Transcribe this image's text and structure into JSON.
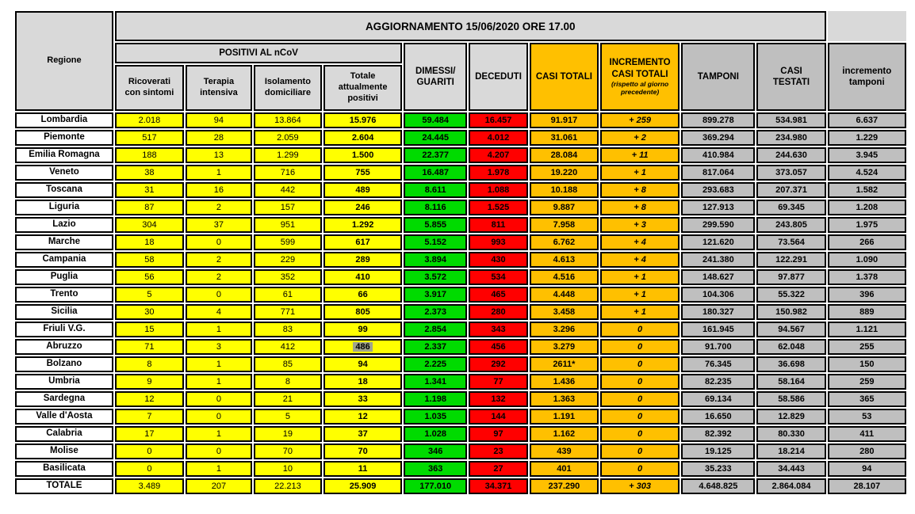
{
  "title": "AGGIORNAMENTO 15/06/2020 ORE 17.00",
  "columns": {
    "regione": "Regione",
    "positivi_group": "POSITIVI AL nCoV",
    "ricoverati": "Ricoverati\ncon sintomi",
    "terapia": "Terapia\nintensiva",
    "isolamento": "Isolamento\ndomiciliare",
    "totale_positivi": "Totale\nattualmente\npositivi",
    "dimessi": "DIMESSI/\nGUARITI",
    "deceduti": "DECEDUTI",
    "casi_totali": "CASI TOTALI",
    "incremento_main": "INCREMENTO\nCASI  TOTALI",
    "incremento_note": "(rispetto al giorno\nprecedente)",
    "tamponi": "TAMPONI",
    "casi_testati": "CASI\nTESTATI",
    "incremento_tamponi": "incremento\ntamponi"
  },
  "colors": {
    "yellow": "#FFFF00",
    "green": "#00DB00",
    "red": "#FF0000",
    "orange": "#FFC000",
    "gray_data": "#BFBFBF",
    "gray_header": "#D9D9D9",
    "border": "#000000",
    "highlight": "#A0A48C"
  },
  "rows": [
    {
      "region": "Lombardia",
      "ricoverati": "2.018",
      "terapia": "94",
      "isolamento": "13.864",
      "totale_positivi": "15.976",
      "dimessi": "59.484",
      "deceduti": "16.457",
      "casi_totali": "91.917",
      "incremento": "+ 259",
      "tamponi": "899.278",
      "casi_testati": "534.981",
      "incremento_tamponi": "6.637"
    },
    {
      "region": "Piemonte",
      "ricoverati": "517",
      "terapia": "28",
      "isolamento": "2.059",
      "totale_positivi": "2.604",
      "dimessi": "24.445",
      "deceduti": "4.012",
      "casi_totali": "31.061",
      "incremento": "+ 2",
      "tamponi": "369.294",
      "casi_testati": "234.980",
      "incremento_tamponi": "1.229"
    },
    {
      "region": "Emilia Romagna",
      "ricoverati": "188",
      "terapia": "13",
      "isolamento": "1.299",
      "totale_positivi": "1.500",
      "dimessi": "22.377",
      "deceduti": "4.207",
      "casi_totali": "28.084",
      "incremento": "+ 11",
      "tamponi": "410.984",
      "casi_testati": "244.630",
      "incremento_tamponi": "3.945"
    },
    {
      "region": "Veneto",
      "ricoverati": "38",
      "terapia": "1",
      "isolamento": "716",
      "totale_positivi": "755",
      "dimessi": "16.487",
      "deceduti": "1.978",
      "casi_totali": "19.220",
      "incremento": "+ 1",
      "tamponi": "817.064",
      "casi_testati": "373.057",
      "incremento_tamponi": "4.524"
    },
    {
      "region": "Toscana",
      "ricoverati": "31",
      "terapia": "16",
      "isolamento": "442",
      "totale_positivi": "489",
      "dimessi": "8.611",
      "deceduti": "1.088",
      "casi_totali": "10.188",
      "incremento": "+ 8",
      "tamponi": "293.683",
      "casi_testati": "207.371",
      "incremento_tamponi": "1.582"
    },
    {
      "region": "Liguria",
      "ricoverati": "87",
      "terapia": "2",
      "isolamento": "157",
      "totale_positivi": "246",
      "dimessi": "8.116",
      "deceduti": "1.525",
      "casi_totali": "9.887",
      "incremento": "+ 8",
      "tamponi": "127.913",
      "casi_testati": "69.345",
      "incremento_tamponi": "1.208"
    },
    {
      "region": "Lazio",
      "ricoverati": "304",
      "terapia": "37",
      "isolamento": "951",
      "totale_positivi": "1.292",
      "dimessi": "5.855",
      "deceduti": "811",
      "casi_totali": "7.958",
      "incremento": "+ 3",
      "tamponi": "299.590",
      "casi_testati": "243.805",
      "incremento_tamponi": "1.975"
    },
    {
      "region": "Marche",
      "ricoverati": "18",
      "terapia": "0",
      "isolamento": "599",
      "totale_positivi": "617",
      "dimessi": "5.152",
      "deceduti": "993",
      "casi_totali": "6.762",
      "incremento": "+ 4",
      "tamponi": "121.620",
      "casi_testati": "73.564",
      "incremento_tamponi": "266"
    },
    {
      "region": "Campania",
      "ricoverati": "58",
      "terapia": "2",
      "isolamento": "229",
      "totale_positivi": "289",
      "dimessi": "3.894",
      "deceduti": "430",
      "casi_totali": "4.613",
      "incremento": "+ 4",
      "tamponi": "241.380",
      "casi_testati": "122.291",
      "incremento_tamponi": "1.090"
    },
    {
      "region": "Puglia",
      "ricoverati": "56",
      "terapia": "2",
      "isolamento": "352",
      "totale_positivi": "410",
      "dimessi": "3.572",
      "deceduti": "534",
      "casi_totali": "4.516",
      "incremento": "+ 1",
      "tamponi": "148.627",
      "casi_testati": "97.877",
      "incremento_tamponi": "1.378"
    },
    {
      "region": "Trento",
      "ricoverati": "5",
      "terapia": "0",
      "isolamento": "61",
      "totale_positivi": "66",
      "dimessi": "3.917",
      "deceduti": "465",
      "casi_totali": "4.448",
      "incremento": "+ 1",
      "tamponi": "104.306",
      "casi_testati": "55.322",
      "incremento_tamponi": "396"
    },
    {
      "region": "Sicilia",
      "ricoverati": "30",
      "terapia": "4",
      "isolamento": "771",
      "totale_positivi": "805",
      "dimessi": "2.373",
      "deceduti": "280",
      "casi_totali": "3.458",
      "incremento": "+ 1",
      "tamponi": "180.327",
      "casi_testati": "150.982",
      "incremento_tamponi": "889"
    },
    {
      "region": "Friuli V.G.",
      "ricoverati": "15",
      "terapia": "1",
      "isolamento": "83",
      "totale_positivi": "99",
      "dimessi": "2.854",
      "deceduti": "343",
      "casi_totali": "3.296",
      "incremento": "0",
      "tamponi": "161.945",
      "casi_testati": "94.567",
      "incremento_tamponi": "1.121"
    },
    {
      "region": "Abruzzo",
      "ricoverati": "71",
      "terapia": "3",
      "isolamento": "412",
      "totale_positivi": "486",
      "highlight_totale": true,
      "dimessi": "2.337",
      "deceduti": "456",
      "casi_totali": "3.279",
      "incremento": "0",
      "tamponi": "91.700",
      "casi_testati": "62.048",
      "incremento_tamponi": "255"
    },
    {
      "region": "Bolzano",
      "ricoverati": "8",
      "terapia": "1",
      "isolamento": "85",
      "totale_positivi": "94",
      "dimessi": "2.225",
      "deceduti": "292",
      "casi_totali": "2611*",
      "incremento": "0",
      "tamponi": "76.345",
      "casi_testati": "36.698",
      "incremento_tamponi": "150"
    },
    {
      "region": "Umbria",
      "ricoverati": "9",
      "terapia": "1",
      "isolamento": "8",
      "totale_positivi": "18",
      "dimessi": "1.341",
      "deceduti": "77",
      "casi_totali": "1.436",
      "incremento": "0",
      "tamponi": "82.235",
      "casi_testati": "58.164",
      "incremento_tamponi": "259"
    },
    {
      "region": "Sardegna",
      "ricoverati": "12",
      "terapia": "0",
      "isolamento": "21",
      "totale_positivi": "33",
      "dimessi": "1.198",
      "deceduti": "132",
      "casi_totali": "1.363",
      "incremento": "0",
      "tamponi": "69.134",
      "casi_testati": "58.586",
      "incremento_tamponi": "365"
    },
    {
      "region": "Valle d'Aosta",
      "ricoverati": "7",
      "terapia": "0",
      "isolamento": "5",
      "totale_positivi": "12",
      "dimessi": "1.035",
      "deceduti": "144",
      "casi_totali": "1.191",
      "incremento": "0",
      "tamponi": "16.650",
      "casi_testati": "12.829",
      "incremento_tamponi": "53"
    },
    {
      "region": "Calabria",
      "ricoverati": "17",
      "terapia": "1",
      "isolamento": "19",
      "totale_positivi": "37",
      "dimessi": "1.028",
      "deceduti": "97",
      "casi_totali": "1.162",
      "incremento": "0",
      "tamponi": "82.392",
      "casi_testati": "80.330",
      "incremento_tamponi": "411"
    },
    {
      "region": "Molise",
      "ricoverati": "0",
      "terapia": "0",
      "isolamento": "70",
      "totale_positivi": "70",
      "dimessi": "346",
      "deceduti": "23",
      "casi_totali": "439",
      "incremento": "0",
      "tamponi": "19.125",
      "casi_testati": "18.214",
      "incremento_tamponi": "280"
    },
    {
      "region": "Basilicata",
      "ricoverati": "0",
      "terapia": "1",
      "isolamento": "10",
      "totale_positivi": "11",
      "dimessi": "363",
      "deceduti": "27",
      "casi_totali": "401",
      "incremento": "0",
      "tamponi": "35.233",
      "casi_testati": "34.443",
      "incremento_tamponi": "94"
    },
    {
      "region": "TOTALE",
      "is_total": true,
      "ricoverati": "3.489",
      "terapia": "207",
      "isolamento": "22.213",
      "totale_positivi": "25.909",
      "dimessi": "177.010",
      "deceduti": "34.371",
      "casi_totali": "237.290",
      "incremento": "+ 303",
      "tamponi": "4.648.825",
      "casi_testati": "2.864.084",
      "incremento_tamponi": "28.107"
    }
  ]
}
